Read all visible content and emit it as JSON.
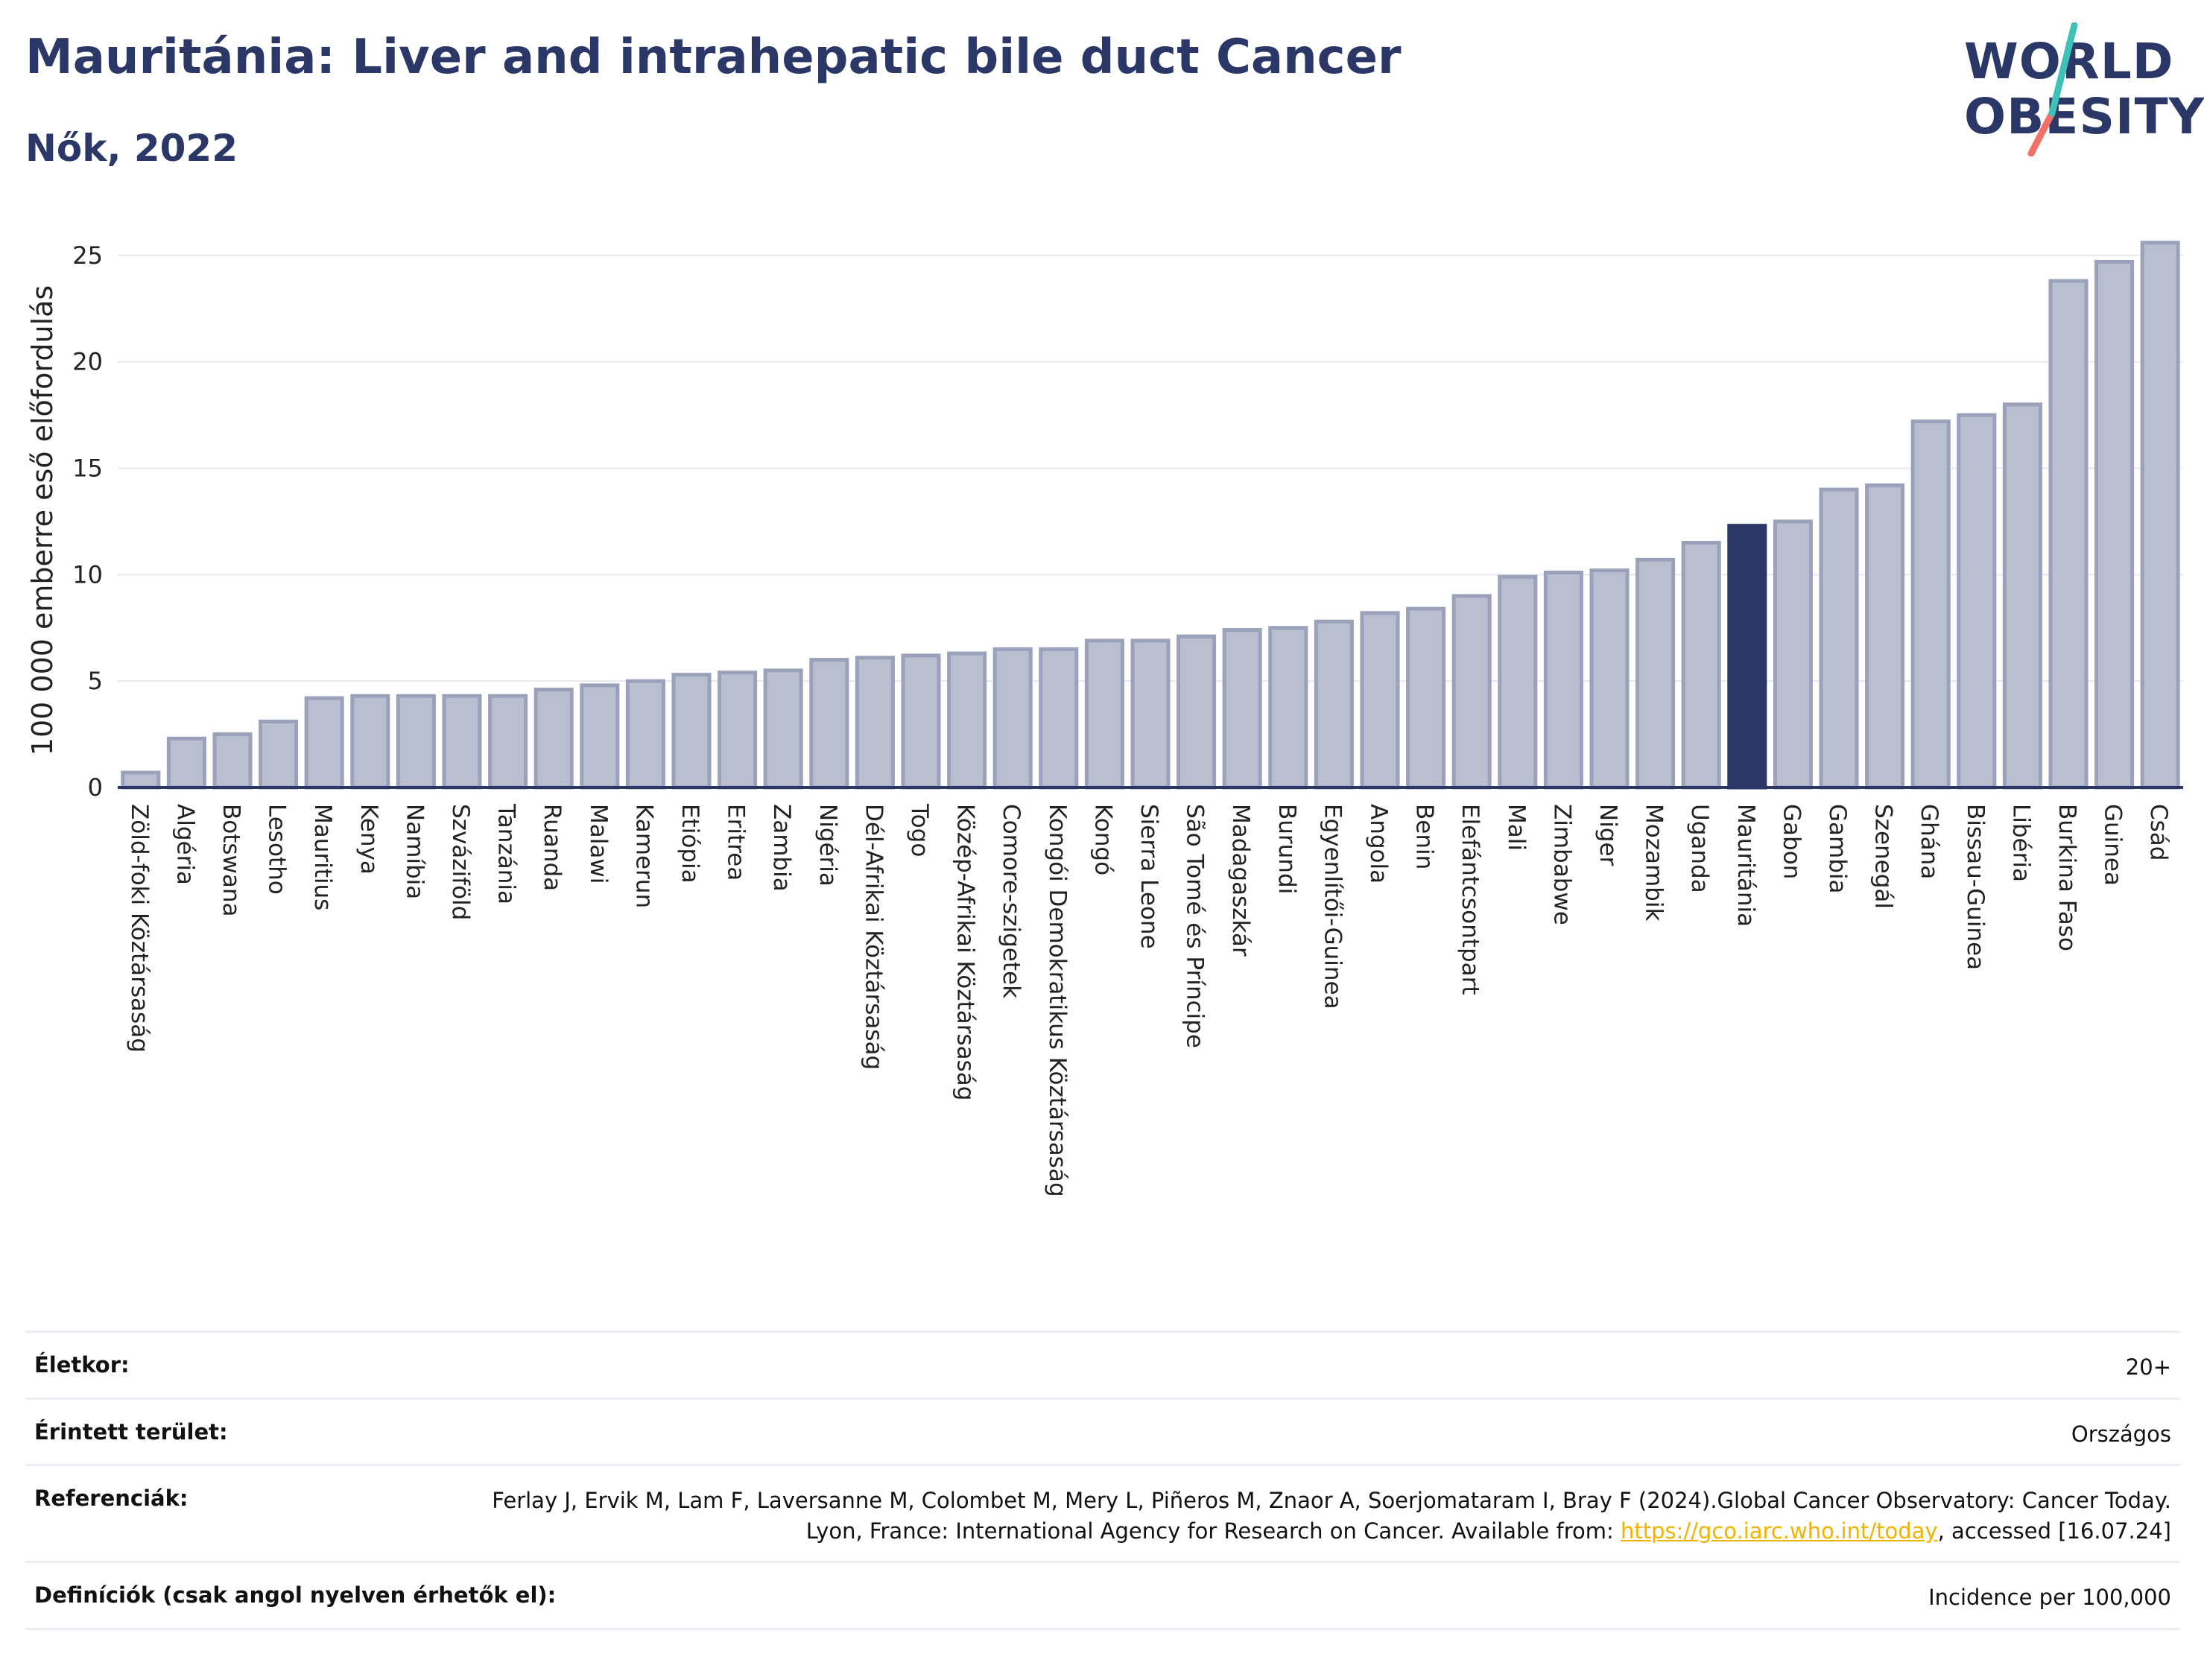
{
  "header": {
    "title": "Mauritánia: Liver and intrahepatic bile duct Cancer",
    "subtitle": "Nők, 2022"
  },
  "logo": {
    "line1": "WORLD",
    "line2": "OBESITY",
    "colors": {
      "text": "#2b3766",
      "slash_top": "#3ec1b7",
      "slash_bottom": "#f07167"
    }
  },
  "colors": {
    "bar": "#b9bfcf",
    "bar_border": "#9aa1bb",
    "highlight": "#2b3766",
    "grid": "#e6e8ee",
    "axis": "#2b3766"
  },
  "chart_data": {
    "type": "bar",
    "ylabel": "100 000 emberre eső előfordulás",
    "ylim": [
      0,
      26.5
    ],
    "yticks": [
      0,
      5,
      10,
      15,
      20,
      25
    ],
    "grid": true,
    "highlight": "Mauritánia",
    "categories": [
      "Zöld-foki Köztársaság",
      "Algéria",
      "Botswana",
      "Lesotho",
      "Mauritius",
      "Kenya",
      "Namíbia",
      "Szváziföld",
      "Tanzánia",
      "Ruanda",
      "Malawi",
      "Kamerun",
      "Etiópia",
      "Eritrea",
      "Zambia",
      "Nigéria",
      "Dél-Afrikai Köztársaság",
      "Togo",
      "Közép-Afrikai Köztársaság",
      "Comore-szigetek",
      "Kongói Demokratikus Köztársaság",
      "Kongó",
      "Sierra Leone",
      "São Tomé és Príncipe",
      "Madagaszkár",
      "Burundi",
      "Egyenlítői-Guinea",
      "Angola",
      "Benin",
      "Elefántcsontpart",
      "Mali",
      "Zimbabwe",
      "Niger",
      "Mozambik",
      "Uganda",
      "Mauritánia",
      "Gabon",
      "Gambia",
      "Szenegál",
      "Ghána",
      "Bissau-Guinea",
      "Libéria",
      "Burkina Faso",
      "Guinea",
      "Csád"
    ],
    "values": [
      0.7,
      2.3,
      2.5,
      3.1,
      4.2,
      4.3,
      4.3,
      4.3,
      4.3,
      4.6,
      4.8,
      5.0,
      5.3,
      5.4,
      5.5,
      6.0,
      6.1,
      6.2,
      6.3,
      6.5,
      6.5,
      6.9,
      6.9,
      7.1,
      7.4,
      7.5,
      7.8,
      8.2,
      8.4,
      9.0,
      9.9,
      10.1,
      10.2,
      10.7,
      11.5,
      12.3,
      12.5,
      14.0,
      14.2,
      17.2,
      17.5,
      18.0,
      23.8,
      24.7,
      25.6
    ]
  },
  "info": {
    "age_label": "Életkor:",
    "age_value": "20+",
    "area_label": "Érintett terület:",
    "area_value": "Országos",
    "ref_label": "Referenciák:",
    "ref_text_1": "Ferlay J, Ervik M, Lam F, Laversanne M, Colombet M, Mery L, Piñeros M, Znaor A, Soerjomataram I, Bray F (2024).Global Cancer Observatory: Cancer Today. Lyon, France: International Agency for Research on Cancer. Available from: ",
    "ref_link": "https://gco.iarc.who.int/today",
    "ref_text_2": ", accessed [16.07.24]",
    "def_label": "Definíciók (csak angol nyelven érhetők el):",
    "def_value": "Incidence per 100,000"
  }
}
